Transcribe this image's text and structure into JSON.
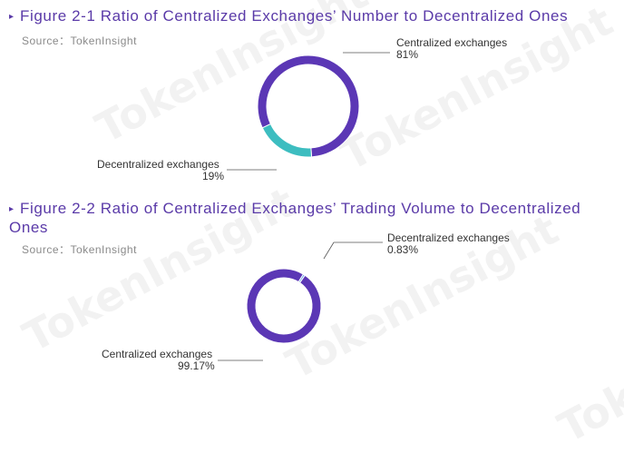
{
  "watermark": "TokenInsight",
  "chart_data": [
    {
      "type": "pie",
      "title": "Figure 2-1 Ratio of Centralized Exchanges’ Number to Decentralized Ones",
      "source": "Source：TokenInsight",
      "slices": [
        {
          "label": "Centralized exchanges",
          "value": 81,
          "value_label": "81%",
          "color": "#5b37b5"
        },
        {
          "label": "Decentralized exchanges",
          "value": 19,
          "value_label": "19%",
          "color": "#3dbdc0"
        }
      ]
    },
    {
      "type": "pie",
      "title": "Figure 2-2 Ratio of Centralized Exchanges’ Trading Volume to Decentralized Ones",
      "source": "Source：TokenInsight",
      "slices": [
        {
          "label": "Centralized exchanges",
          "value": 99.17,
          "value_label": "99.17%",
          "color": "#5b37b5"
        },
        {
          "label": "Decentralized exchanges",
          "value": 0.83,
          "value_label": "0.83%",
          "color": "#6aa6e6"
        }
      ]
    }
  ]
}
